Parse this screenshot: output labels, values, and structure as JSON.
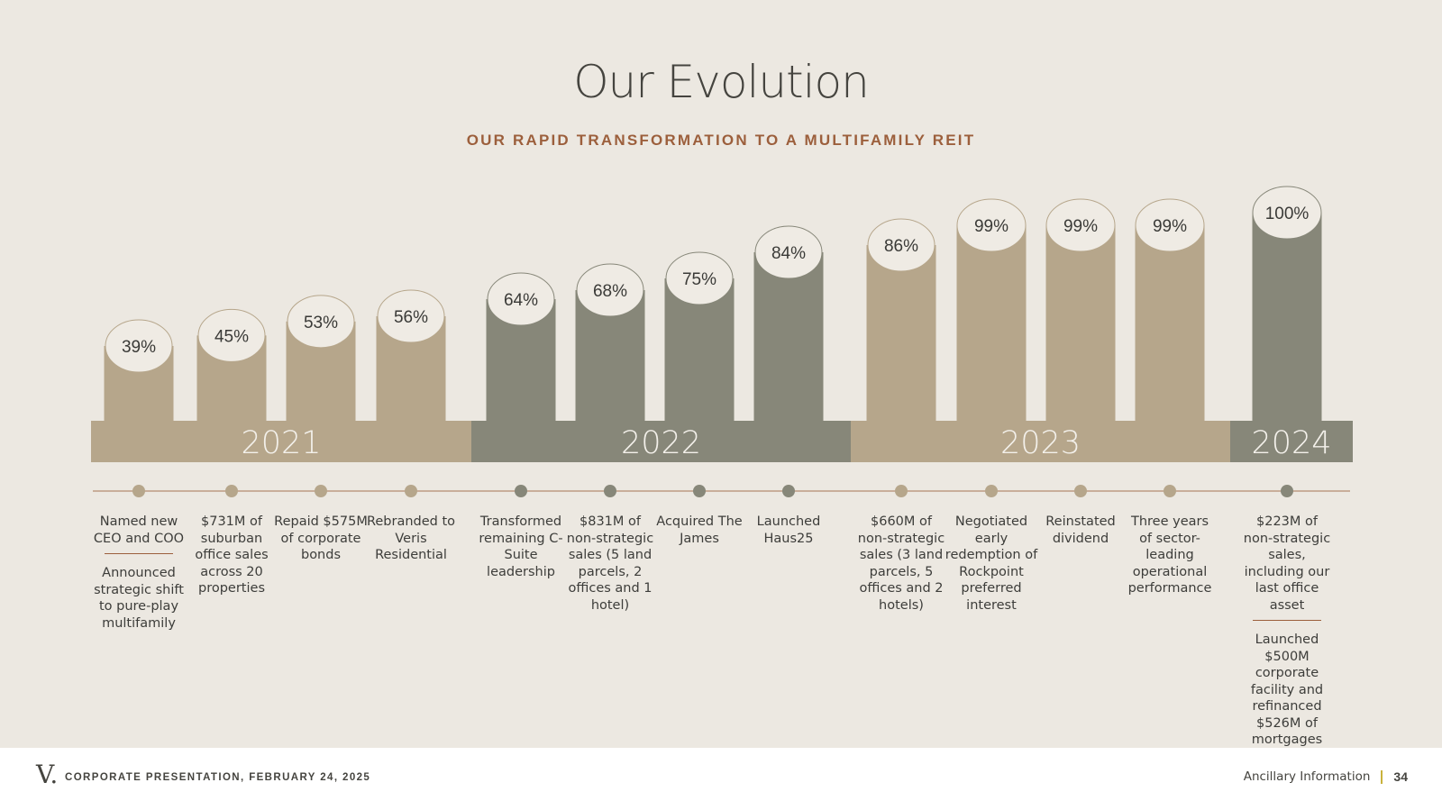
{
  "header": {
    "title": "Our Evolution",
    "subtitle": "OUR RAPID TRANSFORMATION TO A MULTIFAMILY REIT"
  },
  "colors": {
    "tan": "#b6a68b",
    "gray": "#878779",
    "bubble_fill": "#efebe4",
    "timeline_line": "#b48a6f",
    "accent": "#9c5f3c",
    "background": "#ece8e1"
  },
  "chart_data": {
    "type": "bar",
    "categories": [
      "Named new CEO and COO",
      "$731M of suburban office sales across 20 properties",
      "Repaid $575M of corporate bonds",
      "Rebranded to Veris Residential",
      "Transformed remaining C-Suite leadership",
      "$831M of non-strategic sales (5 land parcels, 2 offices and 1 hotel)",
      "Acquired The James",
      "Launched Haus25",
      "$660M of non-strategic sales (3 land parcels, 5 offices and 2 hotels)",
      "Negotiated early redemption of Rockpoint preferred interest",
      "Reinstated dividend",
      "Three years of sector-leading operational performance",
      "$223M of non-strategic sales, including our last office asset"
    ],
    "values": [
      39,
      45,
      53,
      56,
      64,
      68,
      75,
      84,
      86,
      99,
      99,
      99,
      100
    ],
    "value_labels": [
      "39%",
      "45%",
      "53%",
      "56%",
      "64%",
      "68%",
      "75%",
      "84%",
      "86%",
      "99%",
      "99%",
      "99%",
      "100%"
    ],
    "years": [
      "2021",
      "2021",
      "2021",
      "2021",
      "2022",
      "2022",
      "2022",
      "2022",
      "2023",
      "2023",
      "2023",
      "2023",
      "2024"
    ],
    "year_bands": [
      {
        "label": "2021",
        "color": "#b6a68b"
      },
      {
        "label": "2022",
        "color": "#878779"
      },
      {
        "label": "2023",
        "color": "#b6a68b"
      },
      {
        "label": "2024",
        "color": "#878779"
      }
    ],
    "ylim": [
      0,
      100
    ],
    "grid": false,
    "legend": "none"
  },
  "milestones": [
    {
      "text": "Named new CEO and COO",
      "extra": "Announced strategic shift to pure-play multifamily"
    },
    {
      "text": "$731M of suburban office sales across 20 properties"
    },
    {
      "text": "Repaid $575M of corporate bonds"
    },
    {
      "text": "Rebranded to Veris Residential"
    },
    {
      "text": "Transformed remaining C-Suite leadership"
    },
    {
      "text": "$831M of non-strategic sales (5 land parcels, 2 offices and 1 hotel)"
    },
    {
      "text": "Acquired The James"
    },
    {
      "text": "Launched Haus25"
    },
    {
      "text": "$660M of non-strategic sales (3 land parcels, 5 offices and 2 hotels)"
    },
    {
      "text": "Negotiated early redemption of Rockpoint preferred interest"
    },
    {
      "text": "Reinstated dividend"
    },
    {
      "text": "Three years of sector-leading operational performance"
    },
    {
      "text": "$223M of non-strategic sales, including our last office asset",
      "extra": "Launched $500M corporate facility and refinanced $526M of mortgages"
    }
  ],
  "footer": {
    "logo": "V.",
    "left_text": "CORPORATE PRESENTATION, FEBRUARY 24, 2025",
    "section": "Ancillary Information",
    "page": "34"
  }
}
